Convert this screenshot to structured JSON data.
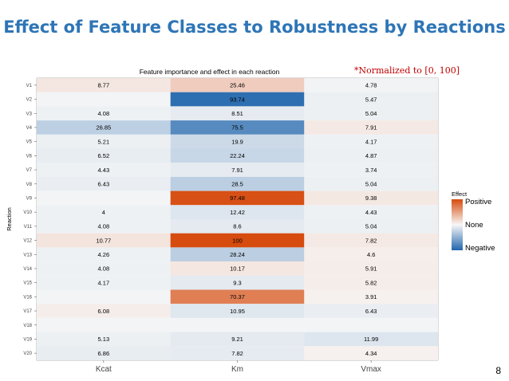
{
  "slide": {
    "title": "Effect of Feature Classes to Robustness by Reactions",
    "note": "*Normalized to [0, 100]",
    "page_number": "8"
  },
  "chart_data": {
    "type": "heatmap",
    "title": "Feature importance and effect in each reaction",
    "xlabel": "",
    "ylabel": "Reaction",
    "columns": [
      "Kcat",
      "Km",
      "Vmax"
    ],
    "rows": [
      "V1",
      "V2",
      "V3",
      "V4",
      "V5",
      "V6",
      "V7",
      "V8",
      "V9",
      "V10",
      "V11",
      "V12",
      "V13",
      "V14",
      "V15",
      "V16",
      "V17",
      "V18",
      "V19",
      "V20"
    ],
    "labels": [
      [
        "8.77",
        "25.46",
        "4.78"
      ],
      [
        "",
        "93.74",
        "5.47"
      ],
      [
        "4.08",
        "8.51",
        "5.04"
      ],
      [
        "26.85",
        "75.5",
        "7.91"
      ],
      [
        "5.21",
        "19.9",
        "4.17"
      ],
      [
        "6.52",
        "22.24",
        "4.87"
      ],
      [
        "4.43",
        "7.91",
        "3.74"
      ],
      [
        "6.43",
        "28.5",
        "5.04"
      ],
      [
        "",
        "97.48",
        "9.38"
      ],
      [
        "4",
        "12.42",
        "4.43"
      ],
      [
        "4.08",
        "8.6",
        "5.04"
      ],
      [
        "10.77",
        "100",
        "7.82"
      ],
      [
        "4.26",
        "28.24",
        "4.6"
      ],
      [
        "4.08",
        "10.17",
        "5.91"
      ],
      [
        "4.17",
        "9.3",
        "5.82"
      ],
      [
        "",
        "70.37",
        "3.91"
      ],
      [
        "6.08",
        "10.95",
        "6.43"
      ],
      [
        "",
        "",
        ""
      ],
      [
        "5.13",
        "9.21",
        "11.99"
      ],
      [
        "6.86",
        "7.82",
        "4.34"
      ]
    ],
    "effects": [
      [
        0.1,
        0.25,
        -0.03
      ],
      [
        -0.02,
        -0.94,
        -0.05
      ],
      [
        -0.04,
        -0.08,
        -0.05
      ],
      [
        -0.27,
        -0.75,
        0.08
      ],
      [
        -0.05,
        -0.2,
        -0.04
      ],
      [
        -0.07,
        -0.22,
        -0.05
      ],
      [
        -0.04,
        -0.08,
        -0.04
      ],
      [
        -0.06,
        -0.28,
        -0.05
      ],
      [
        -0.02,
        0.97,
        0.09
      ],
      [
        -0.04,
        -0.12,
        -0.04
      ],
      [
        -0.04,
        -0.09,
        -0.05
      ],
      [
        0.11,
        1.0,
        0.08
      ],
      [
        -0.04,
        -0.28,
        0.05
      ],
      [
        -0.04,
        0.1,
        0.06
      ],
      [
        -0.04,
        -0.09,
        0.06
      ],
      [
        -0.02,
        0.7,
        0.04
      ],
      [
        0.06,
        -0.11,
        -0.06
      ],
      [
        -0.02,
        -0.02,
        -0.02
      ],
      [
        -0.05,
        -0.09,
        -0.12
      ],
      [
        -0.07,
        -0.08,
        0.04
      ]
    ],
    "legend": {
      "title": "Effect",
      "position": "right",
      "entries": [
        "Positive",
        "None",
        "Negative"
      ]
    },
    "colors": {
      "positive": "#d64b0e",
      "none": "#f7f7f7",
      "negative": "#2166ac"
    },
    "grid": false
  }
}
